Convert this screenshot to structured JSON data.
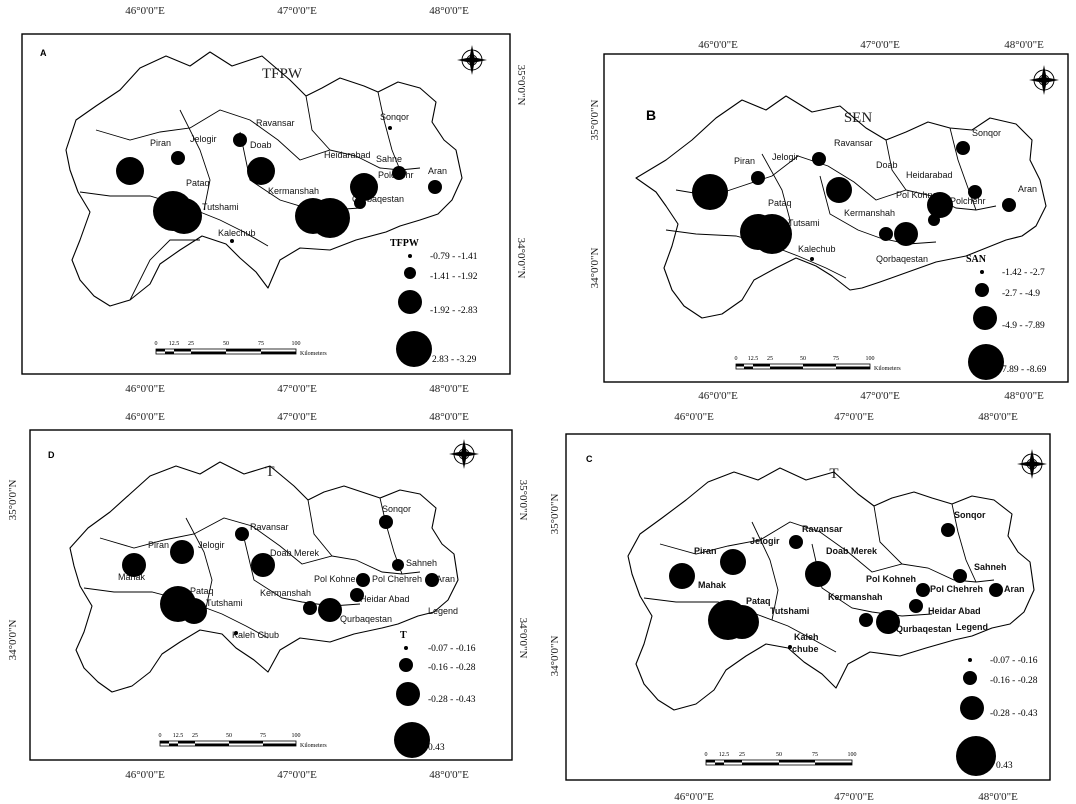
{
  "panels": [
    {
      "letter": "A",
      "title": "TFPW",
      "lon_labels": [
        "46°0'0\"E",
        "47°0'0\"E",
        "48°0'0\"E"
      ],
      "lat_labels": [
        "35°0'0\"N",
        "34°0'0\"N"
      ],
      "places": [
        "Sonqor",
        "Ravansar",
        "Piran",
        "Jelogir",
        "Doab",
        "Heidarabad",
        "Sahne",
        "Polchehr",
        "Aran",
        "Pataq",
        "Kermanshah",
        "Tutshami",
        "Qorbaqestan",
        "Kalechub"
      ],
      "legend_title": "TFPW",
      "legend": [
        "-0.79 - -1.41",
        "-1.41 - -1.92",
        "-1.92 - -2.83",
        "2.83 - -3.29"
      ],
      "scale_ticks": [
        "0",
        "12.5",
        "25",
        "50",
        "75",
        "100"
      ],
      "scale_unit": "Kilometers"
    },
    {
      "letter": "B",
      "title": "SEN",
      "lon_labels": [
        "46°0'0\"E",
        "47°0'0\"E",
        "48°0'0\"E"
      ],
      "lat_labels": [
        "35°0'0\"N",
        "34°0'0\"N"
      ],
      "places": [
        "Sonqor",
        "Ravansar",
        "Piran",
        "Jelogir",
        "Doab",
        "Heidarabad",
        "Pol Kohne",
        "Polchehr",
        "Aran",
        "Pataq",
        "Kermanshah",
        "Tutsami",
        "Qorbaqestan",
        "Kalechub"
      ],
      "legend_title": "SAN",
      "legend": [
        "-1.42 - -2.7",
        "-2.7 - -4.9",
        "-4.9 - -7.89",
        "7.89 - -8.69"
      ],
      "scale_ticks": [
        "0",
        "12.5",
        "25",
        "50",
        "75",
        "100"
      ],
      "scale_unit": "Kilometers"
    },
    {
      "letter": "D",
      "title": "T",
      "lon_labels": [
        "46°0'0\"E",
        "47°0'0\"E",
        "48°0'0\"E"
      ],
      "lat_labels": [
        "35°0'0\"N",
        "34°0'0\"N"
      ],
      "places": [
        "Sonqor",
        "Ravansar",
        "Piran",
        "Jelogir",
        "Doab Merek",
        "Mahak",
        "Sahneh",
        "Pol Chehreh",
        "Pol Kohne",
        "Aran",
        "Pataq",
        "Kermanshah",
        "Tutshami",
        "Heidar Abad",
        "Qurbaqestan",
        "Kaleh Chub",
        "Legend"
      ],
      "legend_title": "T",
      "legend": [
        "-0.07 - -0.16",
        "-0.16 - -0.28",
        "-0.28 - -0.43",
        "0.43"
      ],
      "scale_ticks": [
        "0",
        "12.5",
        "25",
        "50",
        "75",
        "100"
      ],
      "scale_unit": "Kilometers"
    },
    {
      "letter": "C",
      "title": "T",
      "lon_labels": [
        "46°0'0\"E",
        "47°0'0\"E",
        "48°0'0\"E"
      ],
      "lat_labels": [
        "35°0'0\"N",
        "34°0'0\"N"
      ],
      "places": [
        "Sonqor",
        "Ravansar",
        "Piran",
        "Jelogir",
        "Doab Merek",
        "Mahak",
        "Sahneh",
        "Pol Chehreh",
        "Pol Kohneh",
        "Aran",
        "Pataq",
        "Kermanshah",
        "Tutshami",
        "Heidar Abad",
        "Qurbaqestan",
        "Kaleh",
        "chube",
        "Legend"
      ],
      "legend_title": "",
      "legend": [
        "-0.07 - -0.16",
        "-0.16 - -0.28",
        "-0.28 - -0.43",
        "0.43"
      ],
      "scale_ticks": [
        "0",
        "12.5",
        "25",
        "50",
        "75",
        "100"
      ],
      "scale_unit": "Kilometers"
    }
  ]
}
